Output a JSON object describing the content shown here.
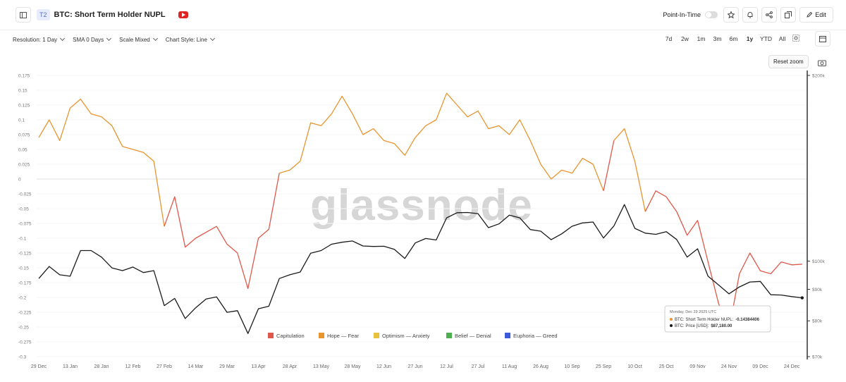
{
  "header": {
    "badge": "T2",
    "title": "BTC: Short Term Holder NUPL",
    "point_in_time": "Point-In-Time",
    "edit": "Edit"
  },
  "toolbar": {
    "options": [
      "Resolution: 1 Day",
      "SMA 0 Days",
      "Scale Mixed",
      "Chart Style: Line"
    ],
    "ranges": [
      "7d",
      "2w",
      "1m",
      "3m",
      "6m",
      "1y",
      "YTD",
      "All"
    ],
    "reset_zoom": "Reset zoom"
  },
  "chart_data": {
    "type": "line",
    "watermark": "glassnode",
    "categories": [
      "29 Dec",
      null,
      null,
      "13 Jan",
      null,
      null,
      "28 Jan",
      null,
      null,
      "12 Feb",
      null,
      null,
      "27 Feb",
      null,
      null,
      "14 Mar",
      null,
      null,
      "29 Mar",
      null,
      null,
      "13 Apr",
      null,
      null,
      "28 Apr",
      null,
      null,
      "13 May",
      null,
      null,
      "28 May",
      null,
      null,
      "12 Jun",
      null,
      null,
      "27 Jun",
      null,
      null,
      "12 Jul",
      null,
      null,
      "27 Jul",
      null,
      null,
      "11 Aug",
      null,
      null,
      "26 Aug",
      null,
      null,
      "10 Sep",
      null,
      null,
      "25 Sep",
      null,
      null,
      "10 Oct",
      null,
      null,
      "25 Oct",
      null,
      null,
      "09 Nov",
      null,
      null,
      "24 Nov",
      null,
      null,
      "09 Dec",
      null,
      null,
      "24 Dec",
      null
    ],
    "series": [
      {
        "values": [
          0.07,
          0.1,
          0.065,
          0.12,
          0.135,
          0.11,
          0.105,
          0.09,
          0.055,
          0.05,
          0.045,
          0.03,
          -0.08,
          -0.03,
          -0.115,
          -0.1,
          -0.09,
          -0.08,
          -0.11,
          -0.125,
          -0.185,
          -0.1,
          -0.085,
          0.01,
          0.015,
          0.03,
          0.095,
          0.09,
          0.11,
          0.14,
          0.11,
          0.075,
          0.085,
          0.065,
          0.06,
          0.04,
          0.07,
          0.09,
          0.1,
          0.145,
          0.125,
          0.105,
          0.115,
          0.085,
          0.09,
          0.075,
          0.1,
          0.065,
          0.025,
          0,
          0.015,
          0.01,
          0.035,
          0.025,
          -0.02,
          0.065,
          0.085,
          0.03,
          -0.055,
          -0.02,
          -0.03,
          -0.055,
          -0.095,
          -0.07,
          -0.14,
          -0.21,
          -0.255,
          -0.16,
          -0.125,
          -0.155,
          -0.16,
          -0.14,
          -0.145,
          -0.14384406
        ]
      },
      {
        "color": "#1a1a1a",
        "axis": "y2",
        "values": [
          93700,
          98000,
          95000,
          94500,
          104000,
          104000,
          101500,
          97500,
          96500,
          97800,
          95800,
          96500,
          84700,
          87000,
          80700,
          84000,
          86800,
          87500,
          82600,
          83100,
          76300,
          83700,
          84500,
          93700,
          95000,
          96000,
          103000,
          104000,
          106500,
          107300,
          107800,
          105800,
          105600,
          105700,
          104500,
          101000,
          107000,
          108800,
          108200,
          117500,
          119800,
          119900,
          119400,
          113300,
          114900,
          118700,
          117500,
          112500,
          111800,
          108300,
          110700,
          113900,
          115300,
          115700,
          109000,
          114000,
          123500,
          113000,
          111000,
          110500,
          111600,
          108400,
          101500,
          104700,
          94500,
          91500,
          88500,
          90800,
          92500,
          92700,
          88200,
          88100,
          87600,
          87180
        ]
      }
    ],
    "ylim": [
      -0.3,
      0.175
    ],
    "yticks": [
      0.175,
      0.15,
      0.125,
      0.1,
      0.075,
      0.05,
      0.025,
      0,
      -0.025,
      -0.05,
      -0.075,
      -0.1,
      -0.125,
      -0.15,
      -0.175,
      -0.2,
      -0.225,
      -0.25,
      -0.275,
      -0.3
    ],
    "y2lim": [
      70000,
      200000
    ],
    "y2scale": "log",
    "y2ticks": [
      {
        "value": 200000,
        "label": "$200k"
      },
      {
        "value": 100000,
        "label": "$100k"
      },
      {
        "value": 90000,
        "label": "$90k"
      },
      {
        "value": 80000,
        "label": "$80k"
      },
      {
        "value": 70000,
        "label": "$70k"
      }
    ],
    "grid": true,
    "legend": [
      {
        "name": "Capitulation",
        "color": "#e0574b"
      },
      {
        "name": "Hope — Fear",
        "color": "#e8952f"
      },
      {
        "name": "Optimism — Anxiety",
        "color": "#e9c23c"
      },
      {
        "name": "Belief — Denial",
        "color": "#4cb050"
      },
      {
        "name": "Euphoria — Greed",
        "color": "#3d5ad8"
      }
    ],
    "tooltip": {
      "title": "Monday, Dec 29 2025 UTC",
      "rows": [
        {
          "label": "BTC: Short Term Holder NUPL:",
          "value": "-0.14384406"
        },
        {
          "label": "BTC: Price [USD]:",
          "value": "$87,180.00"
        }
      ]
    }
  }
}
